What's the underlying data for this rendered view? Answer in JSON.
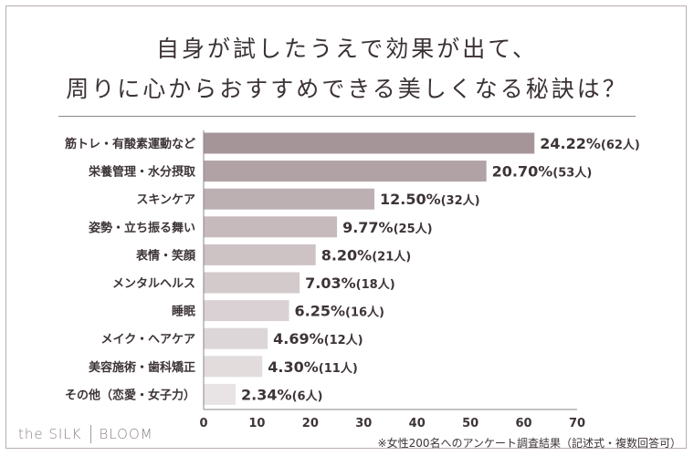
{
  "title_line1": "自身が試したうえで効果が出て、",
  "title_line2": "周りに心からおすすめできる美しくなる秘訣は？",
  "brand": {
    "left": "the SILK",
    "right": "BLOOM"
  },
  "note": "※女性200名へのアンケート調査結果（記述式・複数回答可）",
  "colors": {
    "bars": [
      "#a69598",
      "#b1a2a5",
      "#bdb0b3",
      "#c6babc",
      "#cdc3c5",
      "#d3cacc",
      "#d9d1d3",
      "#ddd6d8",
      "#e2dcdd",
      "#e8e3e4"
    ]
  },
  "chart_data": {
    "type": "bar",
    "orientation": "horizontal",
    "categories": [
      "筋トレ・有酸素運動など",
      "栄養管理・水分摂取",
      "スキンケア",
      "姿勢・立ち振る舞い",
      "表情・笑顔",
      "メンタルヘルス",
      "睡眠",
      "メイク・ヘアケア",
      "美容施術・歯科矯正",
      "その他（恋愛・女子力）"
    ],
    "values": [
      62,
      53,
      32,
      25,
      21,
      18,
      16,
      12,
      11,
      6
    ],
    "labels": [
      {
        "pct": "24.22%",
        "count": "(62人)"
      },
      {
        "pct": "20.70%",
        "count": "(53人)"
      },
      {
        "pct": "12.50%",
        "count": "(32人)"
      },
      {
        "pct": "9.77%",
        "count": "(25人)"
      },
      {
        "pct": "8.20%",
        "count": "(21人)"
      },
      {
        "pct": "7.03%",
        "count": "(18人)"
      },
      {
        "pct": "6.25%",
        "count": "(16人)"
      },
      {
        "pct": "4.69%",
        "count": "(12人)"
      },
      {
        "pct": "4.30%",
        "count": "(11人)"
      },
      {
        "pct": "2.34%",
        "count": "(6人)"
      }
    ],
    "xlim": [
      0,
      70
    ],
    "xticks": [
      "0",
      "10",
      "20",
      "30",
      "40",
      "50",
      "60",
      "70"
    ],
    "grid": false
  }
}
